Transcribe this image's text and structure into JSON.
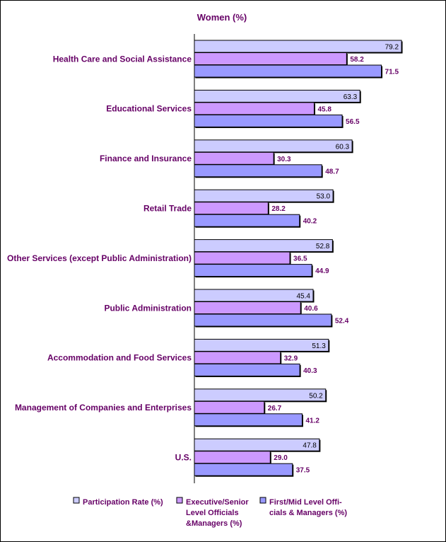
{
  "colors": {
    "label": "#660066",
    "participation": "#ccccff",
    "executive": "#cc99ff",
    "first_mid": "#9999ff",
    "axis": "#000000",
    "bar_stroke": "#000000"
  },
  "chart_data": {
    "type": "bar",
    "orientation": "horizontal",
    "title": "Women (%)",
    "categories": [
      "Health Care and Social Assistance",
      "Educational Services",
      "Finance and Insurance",
      "Retail Trade",
      "Other Services (except Public Administration)",
      "Public Administration",
      "Accommodation and Food Services",
      "Management of Companies and Enterprises",
      "U.S."
    ],
    "series": [
      {
        "name": "Participation Rate (%)",
        "values": [
          79.2,
          63.3,
          60.3,
          53.0,
          52.8,
          45.4,
          51.3,
          50.2,
          47.8
        ],
        "labels": [
          "79.2",
          "63.3",
          "60.3",
          "53.0",
          "52.8",
          "45.4",
          "51.3",
          "50.2",
          "47.8"
        ]
      },
      {
        "name": "Executive/Senior Level Officials &Managers (%)",
        "values": [
          58.2,
          45.8,
          30.3,
          28.2,
          36.5,
          40.6,
          32.9,
          26.7,
          29.0
        ],
        "labels": [
          "58.2",
          "45.8",
          "30.3",
          "28.2",
          "36.5",
          "40.6",
          "32.9",
          "26.7",
          "29.0"
        ]
      },
      {
        "name": "First/Mid Level Officials & Managers (%)",
        "values": [
          71.5,
          56.5,
          48.7,
          40.2,
          44.9,
          52.4,
          40.3,
          41.2,
          37.5
        ],
        "labels": [
          "71.5",
          "56.5",
          "48.7",
          "40.2",
          "44.9",
          "52.4",
          "40.3",
          "41.2",
          "37.5"
        ]
      }
    ],
    "legend": {
      "placement": "bottom",
      "entries": [
        [
          "Participation Rate (%)"
        ],
        [
          "Executive/Senior",
          "Level Officials",
          "&Managers (%)"
        ],
        [
          "First/Mid Level Offi-",
          "cials & Managers (%)"
        ]
      ]
    },
    "xlim": [
      0,
      100
    ],
    "grid": false,
    "axis_ticks_shown": false
  }
}
